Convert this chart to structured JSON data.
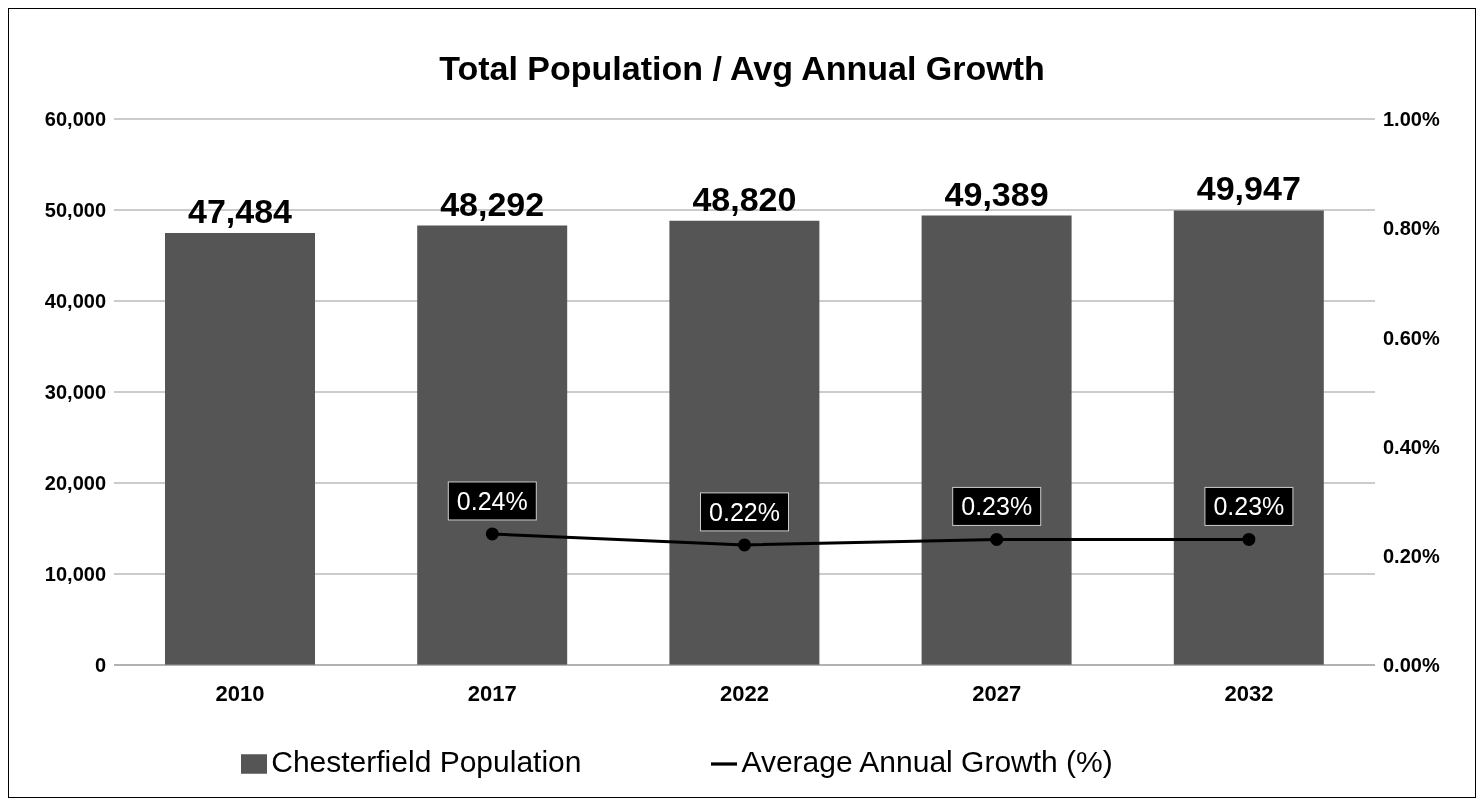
{
  "chart_data": {
    "type": "bar",
    "title": "Total Population / Avg Annual Growth",
    "categories": [
      "2010",
      "2017",
      "2022",
      "2027",
      "2032"
    ],
    "series": [
      {
        "name": "Chesterfield Population",
        "color": "#555555",
        "values": [
          47484,
          48292,
          48820,
          49389,
          49947
        ],
        "value_labels": [
          "47,484",
          "48,292",
          "48,820",
          "49,389",
          "49,947"
        ]
      },
      {
        "name": "Average Annual Growth (%)",
        "type": "line",
        "axis": "y2",
        "color": "#000000",
        "values": [
          null,
          0.24,
          0.22,
          0.23,
          0.23
        ],
        "value_labels": [
          null,
          "0.24%",
          "0.22%",
          "0.23%",
          "0.23%"
        ]
      }
    ],
    "ylim": [
      0,
      60000
    ],
    "yticks": [
      0,
      {
        "value": 10000,
        "label": "10,000"
      },
      {
        "value": 20000,
        "label": "20,000"
      },
      {
        "value": 30000,
        "label": "30,000"
      },
      {
        "value": 40000,
        "label": "40,000"
      },
      {
        "value": 50000,
        "label": "50,000"
      },
      {
        "value": 60000,
        "label": "60,000"
      }
    ],
    "y2lim": [
      0,
      1
    ],
    "y2ticks": [
      {
        "value": 0,
        "label": "0.00%"
      },
      {
        "value": 0.2,
        "label": "0.20%"
      },
      {
        "value": 0.4,
        "label": "0.40%"
      },
      {
        "value": 0.6,
        "label": "0.60%"
      },
      {
        "value": 0.8,
        "label": "0.80%"
      },
      {
        "value": 1,
        "label": "1.00%"
      }
    ],
    "grid": "y",
    "legend": "bottom",
    "marker": "circle"
  }
}
